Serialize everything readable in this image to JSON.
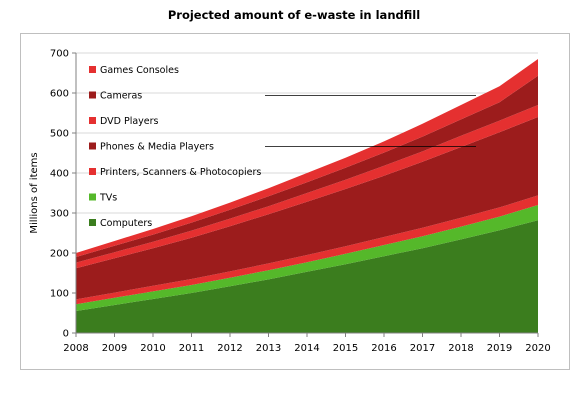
{
  "chart_data": {
    "type": "area",
    "stacked": true,
    "title": "Projected amount of e-waste in landfill",
    "xlabel": "",
    "ylabel": "Millions of items",
    "ylim": [
      0,
      700
    ],
    "yticks": [
      0,
      100,
      200,
      300,
      400,
      500,
      600,
      700
    ],
    "x": [
      2008,
      2009,
      2010,
      2011,
      2012,
      2013,
      2014,
      2015,
      2016,
      2017,
      2018,
      2019,
      2020
    ],
    "legend_position": "top-left (inside plot)",
    "grid": "horizontal",
    "series": [
      {
        "name": "Computers",
        "color": "#3b7d1e",
        "values": [
          55,
          70,
          85,
          100,
          117,
          134,
          153,
          172,
          192,
          212,
          234,
          257,
          282
        ]
      },
      {
        "name": "TVs",
        "color": "#55b82a",
        "values": [
          17,
          18,
          19,
          20,
          21,
          23,
          24,
          26,
          28,
          30,
          32,
          34,
          38
        ]
      },
      {
        "name": "Printers, Scanners & Photocopiers",
        "color": "#e53030",
        "values": [
          12,
          13,
          14,
          15,
          16,
          17,
          18,
          19,
          20,
          21,
          22,
          23,
          24
        ]
      },
      {
        "name": "Phones & Media Players",
        "color": "#9c1c1c",
        "values": [
          78,
          86,
          94,
          103,
          113,
          123,
          133,
          143,
          153,
          165,
          177,
          188,
          196
        ]
      },
      {
        "name": "DVD Players",
        "color": "#e53030",
        "values": [
          14,
          15,
          16,
          18,
          19,
          20,
          22,
          23,
          25,
          26,
          28,
          29,
          30
        ]
      },
      {
        "name": "Cameras",
        "color": "#9c1c1c",
        "values": [
          14,
          16,
          18,
          20,
          22,
          25,
          27,
          30,
          33,
          37,
          41,
          46,
          73
        ]
      },
      {
        "name": "Games Consoles",
        "color": "#e53030",
        "values": [
          10,
          12,
          14,
          16,
          18,
          20,
          23,
          25,
          28,
          32,
          36,
          40,
          42
        ]
      }
    ]
  }
}
